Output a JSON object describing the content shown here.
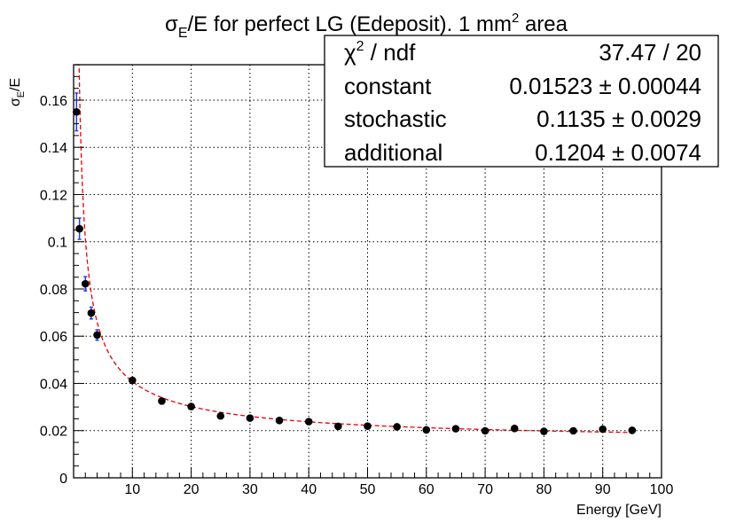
{
  "chart_data": {
    "type": "scatter",
    "title": {
      "sigma": "σ",
      "sub": "E",
      "mid": "/E for perfect LG (Edeposit). 1 mm",
      "sup": "2",
      "end": " area"
    },
    "xlabel": "Energy [GeV]",
    "ylabel": {
      "sigma": "σ",
      "sub": "E",
      "rest": "/E"
    },
    "xlim": [
      0,
      100
    ],
    "ylim": [
      0,
      0.175
    ],
    "x_ticks": [
      10,
      20,
      30,
      40,
      50,
      60,
      70,
      80,
      90,
      100
    ],
    "y_ticks": [
      0,
      0.02,
      0.04,
      0.06,
      0.08,
      0.1,
      0.12,
      0.14,
      0.16
    ],
    "y_tick_labels": [
      "0",
      "0.02",
      "0.04",
      "0.06",
      "0.08",
      "0.1",
      "0.12",
      "0.14",
      "0.16"
    ],
    "grid": true,
    "points": [
      {
        "x": 0.5,
        "y": 0.155,
        "yerr": 0.008
      },
      {
        "x": 1,
        "y": 0.1055,
        "yerr": 0.0045
      },
      {
        "x": 2,
        "y": 0.0822,
        "yerr": 0.003
      },
      {
        "x": 3,
        "y": 0.0698,
        "yerr": 0.0025
      },
      {
        "x": 4,
        "y": 0.0605,
        "yerr": 0.0022
      },
      {
        "x": 10,
        "y": 0.0413,
        "yerr": 0.0008
      },
      {
        "x": 15,
        "y": 0.0325,
        "yerr": 0.0006
      },
      {
        "x": 20,
        "y": 0.0302,
        "yerr": 0.0006
      },
      {
        "x": 25,
        "y": 0.0262,
        "yerr": 0.0005
      },
      {
        "x": 30,
        "y": 0.0253,
        "yerr": 0.0005
      },
      {
        "x": 35,
        "y": 0.0243,
        "yerr": 0.0005
      },
      {
        "x": 40,
        "y": 0.0238,
        "yerr": 0.0005
      },
      {
        "x": 45,
        "y": 0.0218,
        "yerr": 0.0004
      },
      {
        "x": 50,
        "y": 0.0219,
        "yerr": 0.0004
      },
      {
        "x": 55,
        "y": 0.0216,
        "yerr": 0.0004
      },
      {
        "x": 60,
        "y": 0.0203,
        "yerr": 0.0004
      },
      {
        "x": 65,
        "y": 0.0208,
        "yerr": 0.0004
      },
      {
        "x": 70,
        "y": 0.0199,
        "yerr": 0.0004
      },
      {
        "x": 75,
        "y": 0.0209,
        "yerr": 0.0004
      },
      {
        "x": 80,
        "y": 0.0197,
        "yerr": 0.0004
      },
      {
        "x": 85,
        "y": 0.0199,
        "yerr": 0.0004
      },
      {
        "x": 90,
        "y": 0.0206,
        "yerr": 0.0004
      },
      {
        "x": 95,
        "y": 0.0201,
        "yerr": 0.0004
      }
    ],
    "fit": {
      "constant": 0.01523,
      "stochastic": 0.1135,
      "additional": 0.1204,
      "x_range": [
        0.3,
        95
      ],
      "color": "#e8000b"
    },
    "marker_color": "#000000",
    "error_color": "#1f3cff",
    "stats": {
      "rows": [
        {
          "label_main": "χ",
          "label_sup": "2",
          "label_rest": " / ndf",
          "value": "37.47 / 20"
        },
        {
          "label_main": "constant",
          "label_sup": "",
          "label_rest": "",
          "value": "0.01523 ± 0.00044"
        },
        {
          "label_main": "stochastic",
          "label_sup": "",
          "label_rest": "",
          "value": "0.1135 ± 0.0029"
        },
        {
          "label_main": "additional",
          "label_sup": "",
          "label_rest": "",
          "value": "0.1204 ± 0.0074"
        }
      ]
    }
  }
}
